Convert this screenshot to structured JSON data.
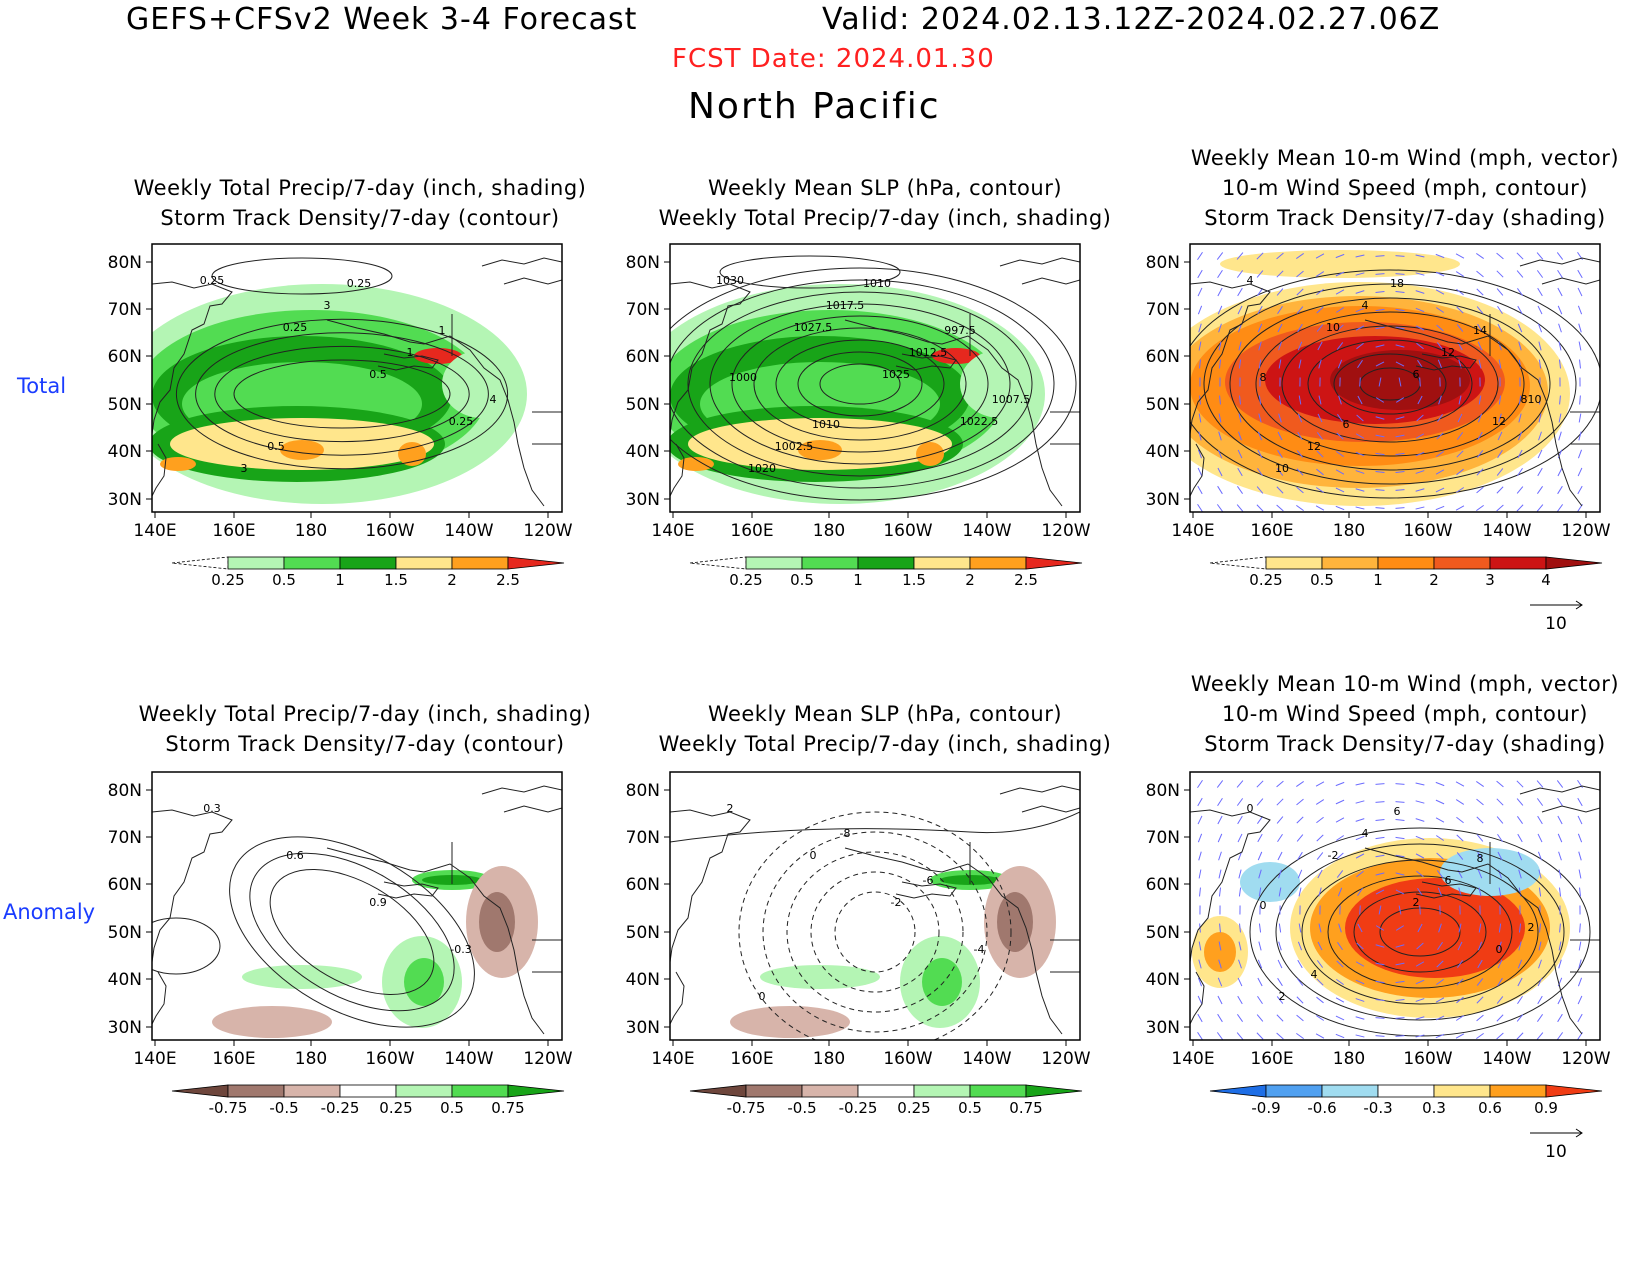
{
  "header": {
    "model_line": "GEFS+CFSv2 Week 3-4 Forecast",
    "valid_line": "Valid: 2024.02.13.12Z-2024.02.27.06Z",
    "fcst_date": "FCST Date: 2024.01.30",
    "region": "North Pacific"
  },
  "colors": {
    "fcst_date": "#ff2020",
    "row_label": "#1a3cff",
    "wind_vector": "#6b6bff"
  },
  "rows": [
    {
      "label": "Total",
      "panels": [
        {
          "title_lines": [
            "Weekly Total Precip/7-day (inch, shading)",
            "Storm Track Density/7-day (contour)"
          ],
          "contour_labels": [
            "0.25",
            "0.25",
            "0.5",
            "0.25",
            "3",
            "3",
            "1",
            "4",
            "0.5",
            "0.25",
            "1"
          ],
          "colorbar": {
            "ticks": [
              "0.25",
              "0.5",
              "1",
              "1.5",
              "2",
              "2.5"
            ],
            "colors": [
              "#ffffff",
              "#b4f5b4",
              "#52dc52",
              "#18a418",
              "#ffe68c",
              "#ffa01e",
              "#e6281e"
            ]
          }
        },
        {
          "title_lines": [
            "Weekly Mean SLP (hPa, contour)",
            "Weekly Total Precip/7-day (inch, shading)"
          ],
          "contour_labels": [
            "1030",
            "1027.5",
            "1025",
            "1022.5",
            "1020",
            "1017.5",
            "1012.5",
            "1007.5",
            "1002.5",
            "1010",
            "997.5",
            "1000",
            "1010"
          ],
          "colorbar": {
            "ticks": [
              "0.25",
              "0.5",
              "1",
              "1.5",
              "2",
              "2.5"
            ],
            "colors": [
              "#ffffff",
              "#b4f5b4",
              "#52dc52",
              "#18a418",
              "#ffe68c",
              "#ffa01e",
              "#e6281e"
            ]
          }
        },
        {
          "title_lines": [
            "Weekly Mean 10-m Wind (mph, vector)",
            "10-m Wind Speed (mph, contour)",
            "Storm Track Density/7-day (shading)"
          ],
          "contour_labels": [
            "4",
            "10",
            "6",
            "12",
            "10",
            "4",
            "12",
            "810",
            "12",
            "18",
            "14",
            "8",
            "6"
          ],
          "colorbar": {
            "ticks": [
              "0.25",
              "0.5",
              "1",
              "2",
              "3",
              "4"
            ],
            "colors": [
              "#ffffff",
              "#ffe68c",
              "#ffb43c",
              "#ff8c14",
              "#f05a1e",
              "#cd1414",
              "#a01010"
            ]
          },
          "vector_ref": "10"
        }
      ]
    },
    {
      "label": "Anomaly",
      "panels": [
        {
          "title_lines": [
            "Weekly Total Precip/7-day (inch, shading)",
            "Storm Track Density/7-day (contour)"
          ],
          "contour_labels": [
            "0.3",
            "0.6",
            "0.9",
            "-0.3"
          ],
          "colorbar": {
            "ticks": [
              "-0.75",
              "-0.5",
              "-0.25",
              "0.25",
              "0.5",
              "0.75"
            ],
            "colors": [
              "#6e463c",
              "#a0786e",
              "#d7b4aa",
              "#ffffff",
              "#b4f5b4",
              "#52dc52",
              "#18a418"
            ]
          }
        },
        {
          "title_lines": [
            "Weekly Mean SLP (hPa, contour)",
            "Weekly Total Precip/7-day (inch, shading)"
          ],
          "contour_labels": [
            "2",
            "0",
            "-2",
            "-4",
            "0",
            "-8",
            "-6"
          ],
          "colorbar": {
            "ticks": [
              "-0.75",
              "-0.5",
              "-0.25",
              "0.25",
              "0.5",
              "0.75"
            ],
            "colors": [
              "#6e463c",
              "#a0786e",
              "#d7b4aa",
              "#ffffff",
              "#b4f5b4",
              "#52dc52",
              "#18a418"
            ]
          }
        },
        {
          "title_lines": [
            "Weekly Mean 10-m Wind (mph, vector)",
            "10-m Wind Speed (mph, contour)",
            "Storm Track Density/7-day (shading)"
          ],
          "contour_labels": [
            "0",
            "-2",
            "2",
            "0",
            "2",
            "4",
            "6",
            "2",
            "4",
            "6",
            "8",
            "0"
          ],
          "colorbar": {
            "ticks": [
              "-0.9",
              "-0.6",
              "-0.3",
              "0.3",
              "0.6",
              "0.9"
            ],
            "colors": [
              "#1e6ee6",
              "#50a0f0",
              "#a0dcf0",
              "#ffffff",
              "#ffe68c",
              "#ffa01e",
              "#f03c14"
            ]
          },
          "vector_ref": "10"
        }
      ]
    }
  ],
  "axes": {
    "lat_labels": [
      "80N",
      "70N",
      "60N",
      "50N",
      "40N",
      "30N"
    ],
    "lon_labels": [
      "140E",
      "160E",
      "180",
      "160W",
      "140W",
      "120W"
    ]
  }
}
